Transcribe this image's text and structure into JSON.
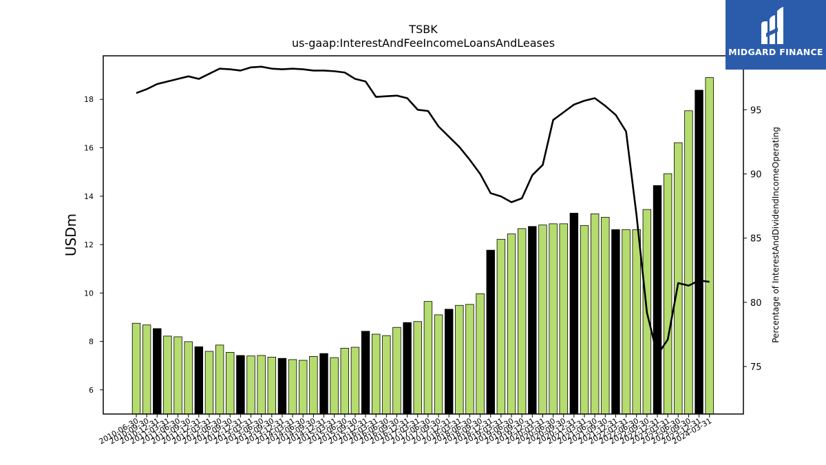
{
  "logo": {
    "text": "MIDGARD FINANCE",
    "background": "#2b5cab"
  },
  "chart_data": {
    "type": "bar",
    "title": "TSBK",
    "subtitle": "us-gaap:InterestAndFeeIncomeLoansAndLeases",
    "ylabel": "USDm",
    "y2label": "Percentage of InterestAndDividendIncomeOperating",
    "ylim": [
      5.0,
      19.8
    ],
    "y2lim": [
      71.3,
      99.2
    ],
    "yticks": [
      "6",
      "8",
      "10",
      "12",
      "14",
      "16",
      "18"
    ],
    "y2ticks": [
      "75",
      "80",
      "85",
      "90",
      "95"
    ],
    "colors": {
      "bar": "#b5dc6e",
      "bar_q4": "#000000",
      "line": "#000000"
    },
    "categories": [
      "2010-06-30",
      "2010-09-30",
      "2010-12-31",
      "2011-03-31",
      "2011-06-30",
      "2011-09-30",
      "2011-12-31",
      "2012-03-31",
      "2012-06-30",
      "2012-09-30",
      "2012-12-31",
      "2013-03-31",
      "2013-06-30",
      "2013-09-30",
      "2013-12-31",
      "2014-03-31",
      "2014-06-30",
      "2014-09-30",
      "2014-12-31",
      "2015-03-31",
      "2015-06-30",
      "2015-09-30",
      "2015-12-31",
      "2016-03-31",
      "2016-06-30",
      "2016-09-30",
      "2016-12-31",
      "2017-03-31",
      "2017-06-30",
      "2017-09-30",
      "2017-12-31",
      "2018-03-31",
      "2018-06-30",
      "2018-09-30",
      "2018-12-31",
      "2019-03-31",
      "2019-06-30",
      "2019-09-30",
      "2019-12-31",
      "2020-03-31",
      "2020-06-30",
      "2020-09-30",
      "2020-12-31",
      "2021-03-31",
      "2021-06-30",
      "2021-09-30",
      "2021-12-31",
      "2022-03-31",
      "2022-06-30",
      "2022-09-30",
      "2022-12-31",
      "2023-03-31",
      "2023-06-30",
      "2023-09-30",
      "2023-12-31",
      "2024-03-31"
    ],
    "xtick_labels": [
      "2010-06-30",
      "2010-09-30",
      "2010-12-31",
      "2011-03-31",
      "2011-06-30",
      "2011-09-30",
      "2011-12-31",
      "2012-03-31",
      "2012-06-30",
      "2012-09-30",
      "2012-12-31",
      "2013-03-31",
      "2013-06-30",
      "2013-09-30",
      "2013-12-31",
      "2014-03-31",
      "2014-06-30",
      "2014-09-30",
      "2014-12-31",
      "2015-03-31",
      "2015-06-30",
      "2015-09-30",
      "2015-12-31",
      "2016-03-31",
      "2016-06-30",
      "2016-09-30",
      "2016-12-31",
      "2017-03-31",
      "2017-06-30",
      "2017-09-30",
      "2017-12-31",
      "2018-03-31",
      "2018-06-30",
      "2018-09-30",
      "2018-12-31",
      "2019-03-31",
      "2019-06-30",
      "2019-09-30",
      "2019-12-31",
      "2020-03-31",
      "2020-06-30",
      "2020-09-30",
      "2020-12-31",
      "2021-03-31",
      "2021-06-30",
      "2021-09-30",
      "2021-12-31",
      "2022-03-31",
      "2022-06-30",
      "2022-09-30",
      "2022-12-31",
      "2023-03-31",
      "2023-06-30",
      "2023-09-30",
      "2023-12-31",
      "2024-03-31"
    ],
    "series": [
      {
        "type": "bar",
        "values": [
          8.75,
          8.68,
          8.53,
          8.22,
          8.19,
          7.99,
          7.78,
          7.59,
          7.85,
          7.55,
          7.42,
          7.4,
          7.42,
          7.35,
          7.3,
          7.25,
          7.22,
          7.38,
          7.5,
          7.33,
          7.72,
          7.76,
          8.42,
          8.3,
          8.24,
          8.58,
          8.78,
          8.82,
          9.65,
          9.1,
          9.33,
          9.49,
          9.53,
          9.97,
          11.77,
          12.22,
          12.44,
          12.66,
          12.75,
          12.81,
          12.86,
          12.86,
          13.3,
          12.79,
          13.27,
          13.13,
          12.62,
          12.62,
          12.62,
          13.45,
          14.44,
          14.93,
          16.21,
          17.53,
          18.38,
          18.9
        ],
        "highlight": [
          false,
          false,
          true,
          false,
          false,
          false,
          true,
          false,
          false,
          false,
          true,
          false,
          false,
          false,
          true,
          false,
          false,
          false,
          true,
          false,
          false,
          false,
          true,
          false,
          false,
          false,
          true,
          false,
          false,
          false,
          true,
          false,
          false,
          false,
          true,
          false,
          false,
          false,
          true,
          false,
          false,
          false,
          true,
          false,
          false,
          false,
          true,
          false,
          false,
          false,
          true,
          false,
          false,
          false,
          true,
          false
        ]
      },
      {
        "type": "line",
        "axis": "right",
        "values": [
          96.3,
          96.6,
          97.0,
          97.2,
          97.4,
          97.6,
          97.4,
          97.8,
          98.2,
          98.15,
          98.05,
          98.3,
          98.35,
          98.2,
          98.15,
          98.2,
          98.15,
          98.05,
          98.05,
          98.0,
          97.9,
          97.4,
          97.2,
          96.0,
          96.05,
          96.1,
          95.9,
          95.0,
          94.9,
          93.7,
          92.9,
          92.1,
          91.1,
          90.0,
          88.5,
          88.25,
          87.8,
          88.1,
          89.9,
          90.7,
          94.2,
          94.8,
          95.4,
          95.7,
          95.9,
          95.3,
          94.6,
          93.3,
          86.8,
          79.2,
          75.9,
          77.1,
          81.5,
          81.3,
          81.7,
          81.6
        ]
      }
    ]
  }
}
